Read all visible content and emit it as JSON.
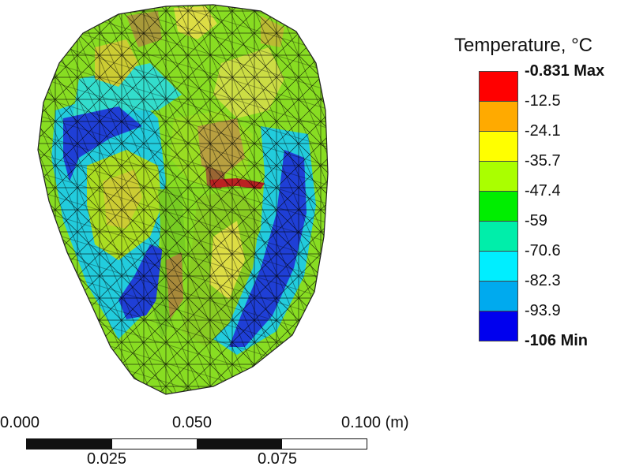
{
  "legend": {
    "title": "Temperature, °C",
    "labels": [
      "-0.831 Max",
      "-12.5",
      "-24.1",
      "-35.7",
      "-47.4",
      "-59",
      "-70.6",
      "-82.3",
      "-93.9",
      "-106 Min"
    ],
    "colors": [
      "#ff0000",
      "#ffaa00",
      "#ffff00",
      "#aaff00",
      "#00ee00",
      "#00eeaa",
      "#00eeff",
      "#00aaee",
      "#0000ee"
    ]
  },
  "scale_bar": {
    "top_labels": [
      "0.000",
      "0.050",
      "0.100 (m)"
    ],
    "bottom_labels": [
      "0.025",
      "0.075"
    ]
  }
}
